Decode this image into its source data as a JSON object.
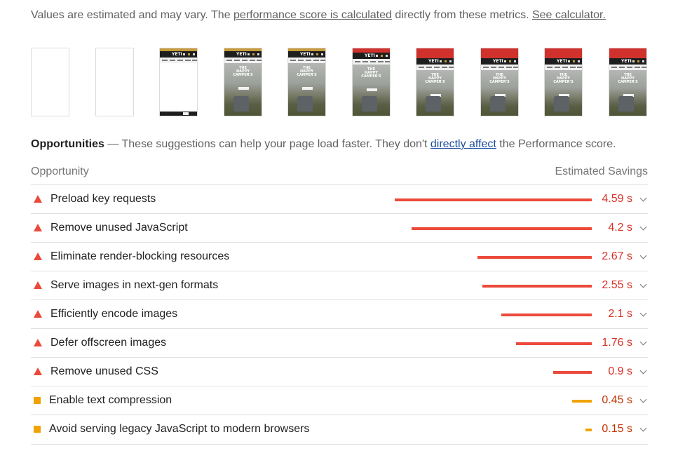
{
  "metrics_note": {
    "prefix": "Values are estimated and may vary. The ",
    "link_calculated": "performance score is calculated",
    "middle": " directly from these metrics. ",
    "link_calculator": "See calculator."
  },
  "filmstrip": {
    "logo_text": "YETI",
    "hero_title": "THE\nHAPPY\nCAMPER'S",
    "frames": [
      {
        "kind": "blank"
      },
      {
        "kind": "blank"
      },
      {
        "kind": "header-only"
      },
      {
        "kind": "hero"
      },
      {
        "kind": "hero"
      },
      {
        "kind": "hero-promo-small"
      },
      {
        "kind": "hero-promo"
      },
      {
        "kind": "hero-promo"
      },
      {
        "kind": "hero-promo"
      },
      {
        "kind": "hero-promo"
      }
    ]
  },
  "opportunities": {
    "heading": "Opportunities",
    "dash": " — ",
    "desc_before": "These suggestions can help your page load faster. They don't ",
    "link": "directly affect",
    "desc_after": " the Performance score.",
    "col_opportunity": "Opportunity",
    "col_savings": "Estimated Savings",
    "items": [
      {
        "title": "Preload key requests",
        "savings": "4.59 s",
        "seconds": 4.59,
        "rating": "fail"
      },
      {
        "title": "Remove unused JavaScript",
        "savings": "4.2 s",
        "seconds": 4.2,
        "rating": "fail"
      },
      {
        "title": "Eliminate render-blocking resources",
        "savings": "2.67 s",
        "seconds": 2.67,
        "rating": "fail"
      },
      {
        "title": "Serve images in next-gen formats",
        "savings": "2.55 s",
        "seconds": 2.55,
        "rating": "fail"
      },
      {
        "title": "Efficiently encode images",
        "savings": "2.1 s",
        "seconds": 2.1,
        "rating": "fail"
      },
      {
        "title": "Defer offscreen images",
        "savings": "1.76 s",
        "seconds": 1.76,
        "rating": "fail"
      },
      {
        "title": "Remove unused CSS",
        "savings": "0.9 s",
        "seconds": 0.9,
        "rating": "fail"
      },
      {
        "title": "Enable text compression",
        "savings": "0.45 s",
        "seconds": 0.45,
        "rating": "average"
      },
      {
        "title": "Avoid serving legacy JavaScript to modern browsers",
        "savings": "0.15 s",
        "seconds": 0.15,
        "rating": "average"
      }
    ]
  },
  "colors": {
    "fail": "#eb4a3b",
    "average": "#f0a300",
    "link": "#1a4d9e"
  }
}
